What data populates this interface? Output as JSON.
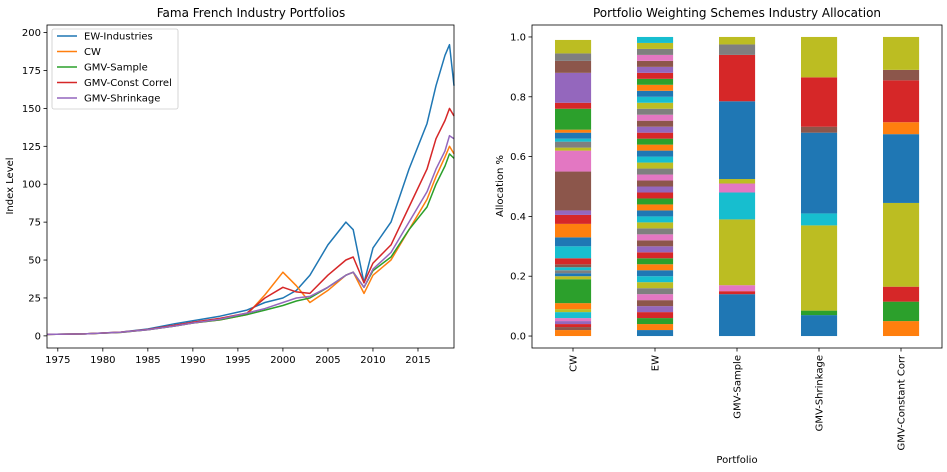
{
  "chart_data": [
    {
      "type": "line",
      "title": "Fama French Industry Portfolios",
      "xlabel": "",
      "ylabel": "Index Level",
      "xlim": [
        1973.8,
        2019
      ],
      "ylim": [
        -8,
        205
      ],
      "xticks": [
        "1975",
        "1980",
        "1985",
        "1990",
        "1995",
        "2000",
        "2005",
        "2010",
        "2015"
      ],
      "yticks": [
        "0",
        "25",
        "50",
        "75",
        "100",
        "125",
        "150",
        "175",
        "200"
      ],
      "legend_position": "upper-left",
      "colors": [
        "#1f77b4",
        "#ff7f0e",
        "#2ca02c",
        "#d62728",
        "#9467bd"
      ],
      "x": [
        1973.8,
        1978,
        1982,
        1985,
        1988,
        1990,
        1993,
        1996,
        1998,
        2000,
        2001.5,
        2003,
        2005,
        2007,
        2007.8,
        2009,
        2010,
        2012,
        2014,
        2016,
        2017,
        2018,
        2018.5,
        2019
      ],
      "series": [
        {
          "name": "EW-Industries",
          "values": [
            1,
            1.3,
            2.5,
            4.5,
            8,
            10,
            13,
            17,
            22,
            25,
            30,
            40,
            60,
            75,
            70,
            35,
            58,
            75,
            110,
            140,
            165,
            185,
            192,
            165
          ]
        },
        {
          "name": "CW",
          "values": [
            1,
            1.3,
            2.3,
            4,
            6.5,
            8.5,
            10.5,
            14,
            27,
            42,
            33,
            22,
            30,
            40,
            42,
            28,
            40,
            50,
            70,
            90,
            105,
            118,
            125,
            120
          ]
        },
        {
          "name": "GMV-Sample",
          "values": [
            1,
            1.3,
            2.3,
            4,
            6.5,
            8.5,
            10.5,
            14,
            17,
            20,
            23,
            25,
            32,
            40,
            42,
            32,
            43,
            52,
            70,
            85,
            100,
            112,
            120,
            117
          ]
        },
        {
          "name": "GMV-Const Correl",
          "values": [
            1,
            1.3,
            2.5,
            4.2,
            7,
            9,
            11.5,
            15,
            25,
            32,
            29,
            28,
            40,
            50,
            52,
            35,
            48,
            60,
            85,
            110,
            130,
            142,
            150,
            145
          ]
        },
        {
          "name": "GMV-Shrinkage",
          "values": [
            1,
            1.3,
            2.4,
            4,
            6.5,
            8.5,
            11,
            15,
            18,
            22,
            25,
            26,
            32,
            40,
            42,
            32,
            44,
            55,
            75,
            95,
            110,
            122,
            132,
            130
          ]
        }
      ]
    },
    {
      "type": "bar",
      "stacked": true,
      "title": "Portfolio Weighting Schemes Industry Allocation",
      "xlabel": "Portfolio",
      "ylabel": "Allocation %",
      "ylim": [
        0,
        1.0
      ],
      "yticks": [
        "0.0",
        "0.2",
        "0.4",
        "0.6",
        "0.8",
        "1.0"
      ],
      "categories": [
        "CW",
        "EW",
        "GMV-Sample",
        "GMV-Shrinkage",
        "GMV-Constant Corr"
      ],
      "colors": [
        "#1f77b4",
        "#ff7f0e",
        "#2ca02c",
        "#d62728",
        "#9467bd",
        "#8c564b",
        "#e377c2",
        "#7f7f7f",
        "#bcbd22",
        "#17becf"
      ],
      "stacks": [
        [
          {
            "c": 1,
            "v": 0.02
          },
          {
            "c": 5,
            "v": 0.01
          },
          {
            "c": 3,
            "v": 0.01
          },
          {
            "c": 4,
            "v": 0.01
          },
          {
            "c": 6,
            "v": 0.01
          },
          {
            "c": 9,
            "v": 0.02
          },
          {
            "c": 8,
            "v": 0.01
          },
          {
            "c": 1,
            "v": 0.02
          },
          {
            "c": 2,
            "v": 0.08
          },
          {
            "c": 8,
            "v": 0.01
          },
          {
            "c": 0,
            "v": 0.01
          },
          {
            "c": 7,
            "v": 0.01
          },
          {
            "c": 9,
            "v": 0.01
          },
          {
            "c": 5,
            "v": 0.01
          },
          {
            "c": 3,
            "v": 0.02
          },
          {
            "c": 9,
            "v": 0.04
          },
          {
            "c": 0,
            "v": 0.03
          },
          {
            "c": 1,
            "v": 0.045
          },
          {
            "c": 3,
            "v": 0.03
          },
          {
            "c": 4,
            "v": 0.015
          },
          {
            "c": 5,
            "v": 0.13
          },
          {
            "c": 6,
            "v": 0.07
          },
          {
            "c": 8,
            "v": 0.01
          },
          {
            "c": 7,
            "v": 0.02
          },
          {
            "c": 9,
            "v": 0.01
          },
          {
            "c": 0,
            "v": 0.02
          },
          {
            "c": 1,
            "v": 0.01
          },
          {
            "c": 2,
            "v": 0.07
          },
          {
            "c": 3,
            "v": 0.02
          },
          {
            "c": 4,
            "v": 0.1
          },
          {
            "c": 5,
            "v": 0.04
          },
          {
            "c": 7,
            "v": 0.025
          },
          {
            "c": 8,
            "v": 0.045
          }
        ],
        [
          {
            "c": 0,
            "v": 0.02
          },
          {
            "c": 1,
            "v": 0.02
          },
          {
            "c": 2,
            "v": 0.02
          },
          {
            "c": 3,
            "v": 0.02
          },
          {
            "c": 4,
            "v": 0.02
          },
          {
            "c": 5,
            "v": 0.02
          },
          {
            "c": 6,
            "v": 0.02
          },
          {
            "c": 7,
            "v": 0.02
          },
          {
            "c": 8,
            "v": 0.02
          },
          {
            "c": 9,
            "v": 0.02
          },
          {
            "c": 0,
            "v": 0.02
          },
          {
            "c": 1,
            "v": 0.02
          },
          {
            "c": 2,
            "v": 0.02
          },
          {
            "c": 3,
            "v": 0.02
          },
          {
            "c": 4,
            "v": 0.02
          },
          {
            "c": 5,
            "v": 0.02
          },
          {
            "c": 6,
            "v": 0.02
          },
          {
            "c": 7,
            "v": 0.02
          },
          {
            "c": 8,
            "v": 0.02
          },
          {
            "c": 9,
            "v": 0.02
          },
          {
            "c": 0,
            "v": 0.02
          },
          {
            "c": 1,
            "v": 0.02
          },
          {
            "c": 2,
            "v": 0.02
          },
          {
            "c": 3,
            "v": 0.02
          },
          {
            "c": 4,
            "v": 0.02
          },
          {
            "c": 5,
            "v": 0.02
          },
          {
            "c": 6,
            "v": 0.02
          },
          {
            "c": 7,
            "v": 0.02
          },
          {
            "c": 8,
            "v": 0.02
          },
          {
            "c": 9,
            "v": 0.02
          },
          {
            "c": 0,
            "v": 0.02
          },
          {
            "c": 1,
            "v": 0.02
          },
          {
            "c": 2,
            "v": 0.02
          },
          {
            "c": 3,
            "v": 0.02
          },
          {
            "c": 4,
            "v": 0.02
          },
          {
            "c": 5,
            "v": 0.02
          },
          {
            "c": 6,
            "v": 0.02
          },
          {
            "c": 7,
            "v": 0.02
          },
          {
            "c": 8,
            "v": 0.02
          },
          {
            "c": 9,
            "v": 0.02
          },
          {
            "c": 0,
            "v": 0.02
          },
          {
            "c": 1,
            "v": 0.02
          },
          {
            "c": 2,
            "v": 0.02
          },
          {
            "c": 3,
            "v": 0.02
          },
          {
            "c": 4,
            "v": 0.02
          },
          {
            "c": 5,
            "v": 0.02
          },
          {
            "c": 6,
            "v": 0.02
          },
          {
            "c": 7,
            "v": 0.02
          },
          {
            "c": 8,
            "v": 0.02
          },
          {
            "c": 9,
            "v": 0.02
          }
        ],
        [
          {
            "c": 0,
            "v": 0.14
          },
          {
            "c": 3,
            "v": 0.01
          },
          {
            "c": 6,
            "v": 0.02
          },
          {
            "c": 8,
            "v": 0.22
          },
          {
            "c": 9,
            "v": 0.09
          },
          {
            "c": 6,
            "v": 0.03
          },
          {
            "c": 8,
            "v": 0.015
          },
          {
            "c": 0,
            "v": 0.26
          },
          {
            "c": 3,
            "v": 0.155
          },
          {
            "c": 7,
            "v": 0.035
          },
          {
            "c": 8,
            "v": 0.025
          }
        ],
        [
          {
            "c": 0,
            "v": 0.07
          },
          {
            "c": 2,
            "v": 0.015
          },
          {
            "c": 8,
            "v": 0.285
          },
          {
            "c": 9,
            "v": 0.04
          },
          {
            "c": 0,
            "v": 0.27
          },
          {
            "c": 5,
            "v": 0.02
          },
          {
            "c": 3,
            "v": 0.165
          },
          {
            "c": 8,
            "v": 0.135
          }
        ],
        [
          {
            "c": 1,
            "v": 0.05
          },
          {
            "c": 2,
            "v": 0.065
          },
          {
            "c": 3,
            "v": 0.05
          },
          {
            "c": 8,
            "v": 0.28
          },
          {
            "c": 0,
            "v": 0.23
          },
          {
            "c": 1,
            "v": 0.04
          },
          {
            "c": 3,
            "v": 0.14
          },
          {
            "c": 5,
            "v": 0.035
          },
          {
            "c": 8,
            "v": 0.11
          }
        ]
      ]
    }
  ]
}
